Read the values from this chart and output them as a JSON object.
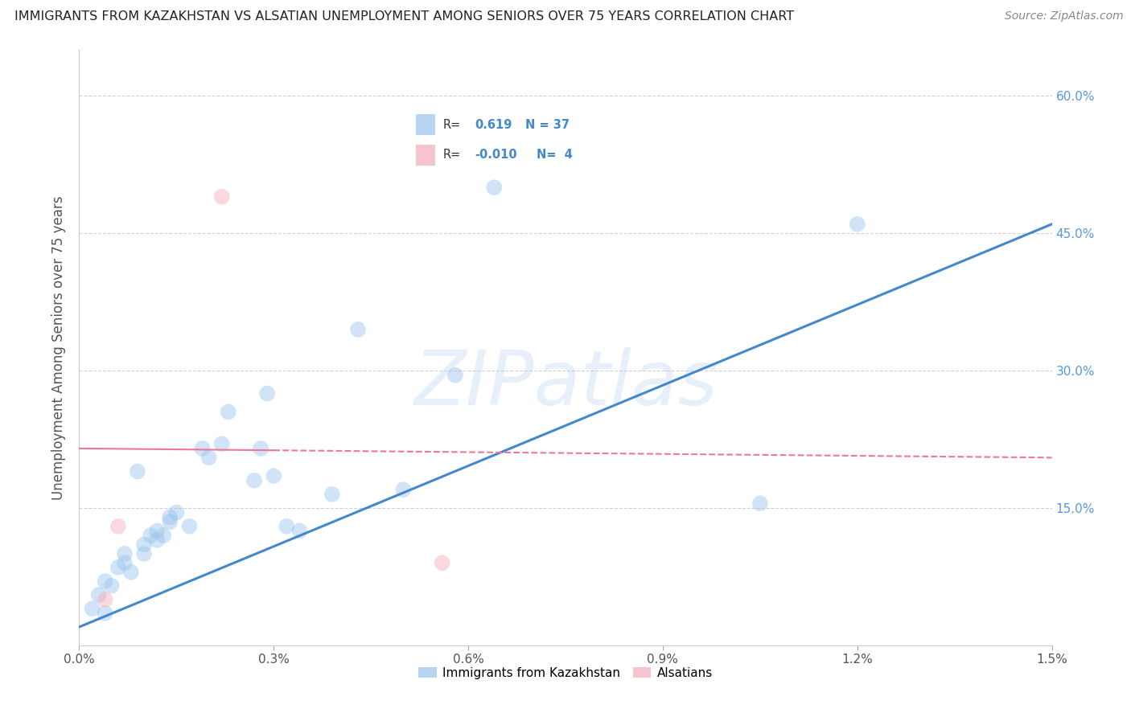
{
  "title": "IMMIGRANTS FROM KAZAKHSTAN VS ALSATIAN UNEMPLOYMENT AMONG SENIORS OVER 75 YEARS CORRELATION CHART",
  "source": "Source: ZipAtlas.com",
  "ylabel": "Unemployment Among Seniors over 75 years",
  "xlim": [
    0.0,
    1.5
  ],
  "ylim": [
    0.0,
    65.0
  ],
  "blue_color": "#99C4EE",
  "pink_color": "#F4AABB",
  "line_blue": "#4488CC",
  "line_pink": "#EE7799",
  "watermark_text": "ZIPatlas",
  "legend_R_blue": "0.619",
  "legend_N_blue": "37",
  "legend_R_pink": "-0.010",
  "legend_N_pink": "4",
  "blue_scatter_x": [
    0.02,
    0.03,
    0.04,
    0.04,
    0.05,
    0.06,
    0.07,
    0.07,
    0.08,
    0.09,
    0.1,
    0.1,
    0.11,
    0.12,
    0.12,
    0.13,
    0.14,
    0.14,
    0.15,
    0.17,
    0.19,
    0.2,
    0.22,
    0.23,
    0.27,
    0.28,
    0.29,
    0.3,
    0.32,
    0.34,
    0.39,
    0.43,
    0.5,
    0.58,
    0.64,
    1.05,
    1.2
  ],
  "blue_scatter_y": [
    4.0,
    5.5,
    3.5,
    7.0,
    6.5,
    8.5,
    10.0,
    9.0,
    8.0,
    19.0,
    10.0,
    11.0,
    12.0,
    11.5,
    12.5,
    12.0,
    14.0,
    13.5,
    14.5,
    13.0,
    21.5,
    20.5,
    22.0,
    25.5,
    18.0,
    21.5,
    27.5,
    18.5,
    13.0,
    12.5,
    16.5,
    34.5,
    17.0,
    29.5,
    50.0,
    15.5,
    46.0
  ],
  "pink_scatter_x": [
    0.04,
    0.06,
    0.22,
    0.56
  ],
  "pink_scatter_y": [
    5.0,
    13.0,
    49.0,
    9.0
  ],
  "blue_line_x": [
    0.0,
    1.5
  ],
  "blue_line_y": [
    2.0,
    46.0
  ],
  "pink_line_x": [
    0.0,
    1.5
  ],
  "pink_line_y": [
    21.5,
    20.5
  ],
  "background_color": "#FFFFFF",
  "grid_color": "#CCCCCC",
  "scatter_size": 200,
  "scatter_alpha": 0.45,
  "legend_label_blue": "Immigrants from Kazakhstan",
  "legend_label_pink": "Alsatians",
  "x_ticks": [
    0.0,
    0.3,
    0.6,
    0.9,
    1.2,
    1.5
  ],
  "x_tick_labels": [
    "0.0%",
    "0.3%",
    "0.6%",
    "0.9%",
    "1.2%",
    "1.5%"
  ],
  "y_ticks_right": [
    15.0,
    30.0,
    45.0,
    60.0
  ],
  "y_tick_labels_right": [
    "15.0%",
    "30.0%",
    "45.0%",
    "60.0%"
  ]
}
